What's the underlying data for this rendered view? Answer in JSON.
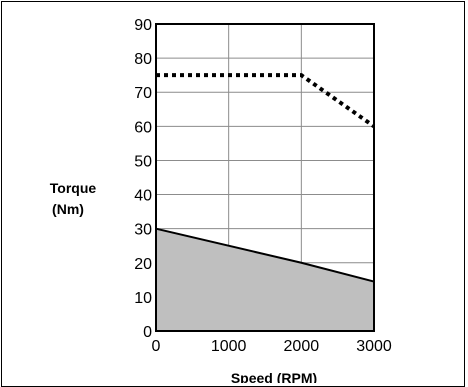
{
  "chart_data": {
    "type": "area",
    "title": "",
    "xlabel": "Speed (RPM)",
    "ylabel_lines": [
      "Torque",
      "(Nm)"
    ],
    "xlim": [
      0,
      3000
    ],
    "ylim": [
      0,
      90
    ],
    "x_ticks": [
      0,
      1000,
      2000,
      3000
    ],
    "y_ticks": [
      0,
      10,
      20,
      30,
      40,
      50,
      60,
      70,
      80,
      90
    ],
    "x_tick_labels": [
      "0",
      "1000",
      "2000",
      "3000"
    ],
    "y_tick_labels": [
      "0",
      "10",
      "20",
      "30",
      "40",
      "50",
      "60",
      "70",
      "80",
      "90"
    ],
    "grid": true,
    "series": [
      {
        "style": "dotted-line",
        "color": "#000000",
        "x": [
          0,
          2000,
          3000
        ],
        "y": [
          75,
          75,
          60
        ]
      },
      {
        "style": "filled-area",
        "color": "#000000",
        "fill": "#bfbfbf",
        "x": [
          0,
          2000,
          3000
        ],
        "y": [
          30,
          20,
          14.5
        ]
      }
    ]
  }
}
